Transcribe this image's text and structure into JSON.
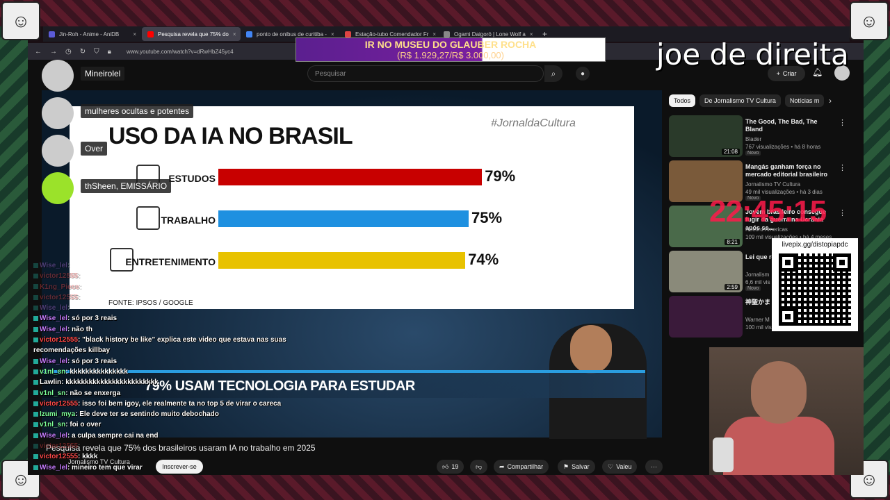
{
  "stream": {
    "title": "joe de direita",
    "clock": "22:45:15",
    "qr_label": "livepix.gg/distopiapdc",
    "donation_line1": "IR NO MUSEU DO GLAUBER ROCHA",
    "donation_line2": "(R$ 1.929,27/R$ 3.000,00)",
    "donation_progress": 0.643
  },
  "browser": {
    "tabs": [
      {
        "label": "Jin-Roh - Anime - AniDB",
        "color": "#5b5bd6"
      },
      {
        "label": "Pesquisa revela que 75% do",
        "color": "#ff0000",
        "active": true
      },
      {
        "label": "ponto de onibus de curitiba -",
        "color": "#4285f4"
      },
      {
        "label": "Estação-tubo Comendador Fr",
        "color": "#d44"
      },
      {
        "label": "Ogami Daigorō | Lone Wolf a",
        "color": "#888"
      }
    ],
    "new_tab": "+",
    "url": "www.youtube.com/watch?v=dRwHbZ45yc4"
  },
  "youtube": {
    "search_placeholder": "Pesquisar",
    "create_label": "Criar",
    "video_title": "Pesquisa revela que 75% dos brasileiros usaram IA no trabalho em 2025",
    "channel": "Jornalismo TV Cultura",
    "subscribe": "Inscrever-se",
    "likes": "19",
    "share": "Compartilhar",
    "save": "Salvar",
    "thanks": "Valeu",
    "chips": [
      "Todos",
      "De Jornalismo TV Cultura",
      "Notícias m"
    ],
    "recommendations": [
      {
        "title": "The Good, The Bad, The Bland",
        "channel": "Blader",
        "meta": "767 visualizações • há 8 horas",
        "badge": "Novo",
        "duration": "21:08",
        "color": "#2a3a2a"
      },
      {
        "title": "Mangás ganham força no mercado editorial brasileiro",
        "channel": "Jornalismo TV Cultura",
        "meta": "49 mil visualizações • há 3 dias",
        "badge": "Novo",
        "duration": "",
        "color": "#7a5a3a"
      },
      {
        "title": "Jovem brasileiro consegue fugir da guerra na Ucrânia após se...",
        "channel": "Record Americas",
        "meta": "109 mil visualizações • há 4 meses",
        "badge": "",
        "duration": "8:21",
        "color": "#4a6a4a"
      },
      {
        "title": "Lei que re influencia",
        "channel": "Jornalism",
        "meta": "6,6 mil vis",
        "badge": "Novo",
        "duration": "2:59",
        "color": "#8a8a7a"
      },
      {
        "title": "神聖かま レイニー",
        "channel": "Warner M",
        "meta": "100 mil vis",
        "badge": "",
        "duration": "",
        "color": "#3a1a3a"
      }
    ]
  },
  "slide": {
    "title": "USO DA IA NO BRASIL",
    "hashtag": "#JornaldaCultura",
    "source": "FONTE: IPSOS / GOOGLE",
    "lower_third": "79% USAM TECNOLOGIA PARA ESTUDAR"
  },
  "chart_data": {
    "type": "bar",
    "title": "USO DA IA NO BRASIL",
    "categories": [
      "ESTUDOS",
      "TRABALHO",
      "ENTRETENIMENTO"
    ],
    "values": [
      79,
      75,
      74
    ],
    "value_labels": [
      "79%",
      "75%",
      "74%"
    ],
    "colors": [
      "#c80000",
      "#1e90e0",
      "#e8c200"
    ],
    "ylim": [
      0,
      100
    ]
  },
  "alerts": [
    {
      "name": "Mineirolel"
    },
    {
      "name": "mulheres ocultas e potentes"
    },
    {
      "name": "Over"
    },
    {
      "name": "thSheen, EMISSÁRIO"
    }
  ],
  "chat": [
    {
      "user": "Wise_lel",
      "text": "",
      "color": "#c77dff",
      "faded": true
    },
    {
      "user": "victor12555",
      "text": "",
      "color": "#ff4a4a",
      "faded": true
    },
    {
      "user": "K1ng_Piece",
      "text": "",
      "color": "#ff4a4a",
      "faded": true
    },
    {
      "user": "victor12555",
      "text": "",
      "color": "#ff4a4a",
      "faded": true
    },
    {
      "user": "Wise_lel",
      "text": "",
      "color": "#c77dff",
      "faded": true
    },
    {
      "user": "Wise_lel",
      "text": "só por 3 reais",
      "color": "#c77dff"
    },
    {
      "user": "Wise_lel",
      "text": "não th",
      "color": "#c77dff"
    },
    {
      "user": "victor12555",
      "text": "\"black history be like\" explica este video que estava nas suas",
      "color": "#ff4a4a"
    },
    {
      "user": "",
      "text": "recomendações killbay",
      "color": "#ffffff"
    },
    {
      "user": "Wise_lel",
      "text": "só por 3 reais",
      "color": "#c77dff"
    },
    {
      "user": "v1nl_sn",
      "text": "kkkkkkkkkkkkkkk",
      "color": "#7dff9a"
    },
    {
      "user": "Lawlin",
      "text": "kkkkkkkkkkkkkkkkkkkkkkkk",
      "color": "#ffffff"
    },
    {
      "user": "v1nl_sn",
      "text": "não se enxerga",
      "color": "#7dff9a"
    },
    {
      "user": "victor12555",
      "text": "isso foi bem igoy, ele realmente ta no top 5 de virar o careca",
      "color": "#ff4a4a"
    },
    {
      "user": "Izumi_mya",
      "text": "Ele deve ter se sentindo muito debochado",
      "color": "#7dff9a"
    },
    {
      "user": "v1nl_sn",
      "text": "foi o over",
      "color": "#7dff9a"
    },
    {
      "user": "Wise_lel",
      "text": "a culpa sempre cai na end",
      "color": "#c77dff"
    },
    {
      "user": "victor12555",
      "text": "",
      "color": "#ff4a4a",
      "faded": true
    },
    {
      "user": "victor12555",
      "text": "kkkk",
      "color": "#ff4a4a"
    },
    {
      "user": "Wise_lel",
      "text": "mineiro tem que virar",
      "color": "#c77dff"
    }
  ]
}
